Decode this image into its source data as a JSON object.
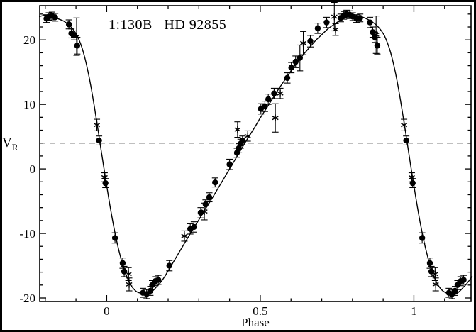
{
  "figure": {
    "background": "#ffffff",
    "ink": "#000000"
  },
  "chart_data": {
    "type": "scatter",
    "title": "1:130B   HD 92855",
    "xlabel": "Phase",
    "ylabel": {
      "base": "V",
      "sub": "R"
    },
    "xlim": [
      -0.218,
      1.186
    ],
    "ylim": [
      -20.55,
      25.3
    ],
    "x_ticks": [
      {
        "p": 0,
        "label": "0"
      },
      {
        "p": 0.5,
        "label": "0.5"
      },
      {
        "p": 1,
        "label": "1"
      }
    ],
    "x_minor_step": 0.1,
    "y_ticks": [
      {
        "v": -20,
        "label": "-20"
      },
      {
        "v": -10,
        "label": "-10"
      },
      {
        "v": 0,
        "label": "0"
      },
      {
        "v": 10,
        "label": "10"
      },
      {
        "v": 20,
        "label": "20"
      }
    ],
    "y_minor_step": 2,
    "mean_velocity_line": 4.0,
    "grid": false,
    "legend": "none",
    "series": [
      {
        "name": "radial-velocity-filled-circles",
        "marker": "filled-circle",
        "points": [
          [
            -0.196,
            23.3,
            0.6
          ],
          [
            -0.188,
            23.6,
            0.6
          ],
          [
            -0.178,
            23.7,
            0.6
          ],
          [
            -0.168,
            23.5,
            0.6
          ],
          [
            -0.123,
            22.4,
            0.7
          ],
          [
            -0.115,
            21.0,
            0.7
          ],
          [
            -0.106,
            20.7,
            0.7
          ],
          [
            -0.096,
            19.1,
            1.3
          ],
          [
            -0.025,
            4.4,
            0.7
          ],
          [
            -0.004,
            -2.2,
            0.7
          ],
          [
            0.027,
            -10.7,
            0.8
          ],
          [
            0.052,
            -14.6,
            0.8
          ],
          [
            0.057,
            -15.9,
            0.8
          ],
          [
            0.118,
            -19.2,
            0.7
          ],
          [
            0.13,
            -19.4,
            0.7
          ],
          [
            0.142,
            -18.9,
            0.7
          ],
          [
            0.148,
            -18.0,
            0.7
          ],
          [
            0.158,
            -17.4,
            0.7
          ],
          [
            0.168,
            -17.2,
            0.7
          ],
          [
            0.204,
            -15.0,
            0.8
          ],
          [
            0.272,
            -9.3,
            0.8
          ],
          [
            0.284,
            -9.0,
            0.8
          ],
          [
            0.306,
            -6.8,
            0.8
          ],
          [
            0.322,
            -5.5,
            0.7
          ],
          [
            0.334,
            -4.4,
            0.7
          ],
          [
            0.353,
            -2.1,
            0.7
          ],
          [
            0.4,
            0.7,
            0.8
          ],
          [
            0.424,
            2.5,
            0.7
          ],
          [
            0.43,
            3.2,
            0.7
          ],
          [
            0.436,
            3.9,
            0.7
          ],
          [
            0.442,
            4.4,
            0.7
          ],
          [
            0.502,
            9.3,
            0.8
          ],
          [
            0.515,
            9.7,
            0.8
          ],
          [
            0.526,
            10.8,
            0.8
          ],
          [
            0.545,
            11.7,
            0.8
          ],
          [
            0.588,
            14.1,
            0.8
          ],
          [
            0.601,
            15.7,
            0.8
          ],
          [
            0.615,
            16.6,
            0.9
          ],
          [
            0.629,
            17.2,
            2.0
          ],
          [
            0.663,
            19.8,
            0.9
          ],
          [
            0.687,
            21.8,
            0.8
          ],
          [
            0.716,
            22.7,
            0.8
          ],
          [
            0.762,
            23.4,
            0.6
          ],
          [
            0.772,
            23.8,
            0.6
          ],
          [
            0.781,
            24.0,
            0.6
          ],
          [
            0.791,
            23.9,
            0.6
          ],
          [
            0.801,
            23.6,
            0.6
          ],
          [
            0.813,
            23.3,
            0.6
          ],
          [
            0.825,
            23.4,
            0.6
          ],
          [
            0.857,
            22.7,
            0.8
          ],
          [
            0.866,
            21.2,
            0.8
          ],
          [
            0.873,
            20.4,
            0.8
          ],
          [
            0.881,
            19.1,
            1.3
          ],
          [
            0.975,
            4.4,
            0.7
          ],
          [
            0.996,
            -2.2,
            0.7
          ],
          [
            1.027,
            -10.7,
            0.8
          ],
          [
            1.052,
            -14.6,
            0.8
          ],
          [
            1.057,
            -15.9,
            0.8
          ],
          [
            1.114,
            -19.2,
            0.7
          ],
          [
            1.124,
            -19.4,
            0.7
          ],
          [
            1.134,
            -18.9,
            0.7
          ],
          [
            1.142,
            -18.0,
            0.7
          ],
          [
            1.152,
            -17.4,
            0.7
          ],
          [
            1.162,
            -17.2,
            0.7
          ]
        ]
      },
      {
        "name": "radial-velocity-asterisks",
        "marker": "asterisk",
        "points": [
          [
            -0.098,
            20.5,
            2.9
          ],
          [
            -0.032,
            6.8,
            0.9
          ],
          [
            -0.007,
            -1.3,
            0.7
          ],
          [
            0.071,
            -16.3,
            1.0
          ],
          [
            0.073,
            -17.9,
            1.0
          ],
          [
            0.253,
            -10.4,
            0.8
          ],
          [
            0.318,
            -6.6,
            1.3
          ],
          [
            0.426,
            6.1,
            1.2
          ],
          [
            0.459,
            5.1,
            0.8
          ],
          [
            0.549,
            7.9,
            2.2
          ],
          [
            0.565,
            11.7,
            0.8
          ],
          [
            0.64,
            19.5,
            1.8
          ],
          [
            0.741,
            23.6,
            2.2
          ],
          [
            0.745,
            21.6,
            0.9
          ],
          [
            0.877,
            20.8,
            2.9
          ],
          [
            0.968,
            6.8,
            0.9
          ],
          [
            0.993,
            -1.3,
            0.7
          ],
          [
            1.069,
            -16.3,
            1.0
          ],
          [
            1.071,
            -17.9,
            1.0
          ]
        ]
      }
    ],
    "model_curve": [
      [
        -0.22,
        23.6
      ],
      [
        -0.2,
        23.8
      ],
      [
        -0.18,
        23.6
      ],
      [
        -0.16,
        23.3
      ],
      [
        -0.14,
        22.9
      ],
      [
        -0.12,
        22.2
      ],
      [
        -0.1,
        21.0
      ],
      [
        -0.09,
        20.0
      ],
      [
        -0.08,
        18.7
      ],
      [
        -0.07,
        17.0
      ],
      [
        -0.06,
        14.9
      ],
      [
        -0.05,
        12.4
      ],
      [
        -0.04,
        9.6
      ],
      [
        -0.03,
        6.6
      ],
      [
        -0.02,
        3.5
      ],
      [
        -0.01,
        0.4
      ],
      [
        0,
        -2.6
      ],
      [
        0.01,
        -5.5
      ],
      [
        0.02,
        -8.2
      ],
      [
        0.03,
        -10.6
      ],
      [
        0.04,
        -12.7
      ],
      [
        0.05,
        -14.5
      ],
      [
        0.06,
        -16.0
      ],
      [
        0.07,
        -17.2
      ],
      [
        0.08,
        -18.1
      ],
      [
        0.09,
        -18.7
      ],
      [
        0.1,
        -19.1
      ],
      [
        0.12,
        -19.4
      ],
      [
        0.13,
        -19.5
      ],
      [
        0.14,
        -19.3
      ],
      [
        0.15,
        -18.9
      ],
      [
        0.16,
        -18.4
      ],
      [
        0.17,
        -17.9
      ],
      [
        0.18,
        -17.3
      ],
      [
        0.19,
        -16.6
      ],
      [
        0.2,
        -15.8
      ],
      [
        0.22,
        -14.2
      ],
      [
        0.24,
        -12.6
      ],
      [
        0.26,
        -11.0
      ],
      [
        0.28,
        -9.4
      ],
      [
        0.3,
        -7.9
      ],
      [
        0.32,
        -6.3
      ],
      [
        0.34,
        -4.8
      ],
      [
        0.36,
        -3.2
      ],
      [
        0.38,
        -1.6
      ],
      [
        0.4,
        0.0
      ],
      [
        0.42,
        1.6
      ],
      [
        0.44,
        3.2
      ],
      [
        0.46,
        4.8
      ],
      [
        0.48,
        6.3
      ],
      [
        0.5,
        7.9
      ],
      [
        0.52,
        9.4
      ],
      [
        0.54,
        10.9
      ],
      [
        0.56,
        12.4
      ],
      [
        0.58,
        13.8
      ],
      [
        0.6,
        15.2
      ],
      [
        0.62,
        16.5
      ],
      [
        0.64,
        17.7
      ],
      [
        0.66,
        18.8
      ],
      [
        0.68,
        19.9
      ],
      [
        0.7,
        20.8
      ],
      [
        0.72,
        21.7
      ],
      [
        0.74,
        22.4
      ],
      [
        0.76,
        23.0
      ],
      [
        0.78,
        23.5
      ],
      [
        0.8,
        23.8
      ],
      [
        0.82,
        23.7
      ],
      [
        0.84,
        23.4
      ],
      [
        0.86,
        22.9
      ],
      [
        0.88,
        22.2
      ],
      [
        0.9,
        21.0
      ],
      [
        0.91,
        20.0
      ],
      [
        0.92,
        18.7
      ],
      [
        0.93,
        17.0
      ],
      [
        0.94,
        14.9
      ],
      [
        0.95,
        12.4
      ],
      [
        0.96,
        9.6
      ],
      [
        0.97,
        6.6
      ],
      [
        0.98,
        3.5
      ],
      [
        0.99,
        0.4
      ],
      [
        1,
        -2.6
      ],
      [
        1.01,
        -5.5
      ],
      [
        1.02,
        -8.2
      ],
      [
        1.03,
        -10.6
      ],
      [
        1.04,
        -12.7
      ],
      [
        1.05,
        -14.5
      ],
      [
        1.06,
        -16.0
      ],
      [
        1.07,
        -17.2
      ],
      [
        1.08,
        -18.1
      ],
      [
        1.09,
        -18.7
      ],
      [
        1.1,
        -19.1
      ],
      [
        1.12,
        -19.4
      ],
      [
        1.13,
        -19.5
      ],
      [
        1.14,
        -19.3
      ],
      [
        1.15,
        -18.9
      ],
      [
        1.16,
        -18.4
      ],
      [
        1.17,
        -17.9
      ],
      [
        1.18,
        -17.3
      ],
      [
        1.19,
        -16.6
      ]
    ]
  }
}
